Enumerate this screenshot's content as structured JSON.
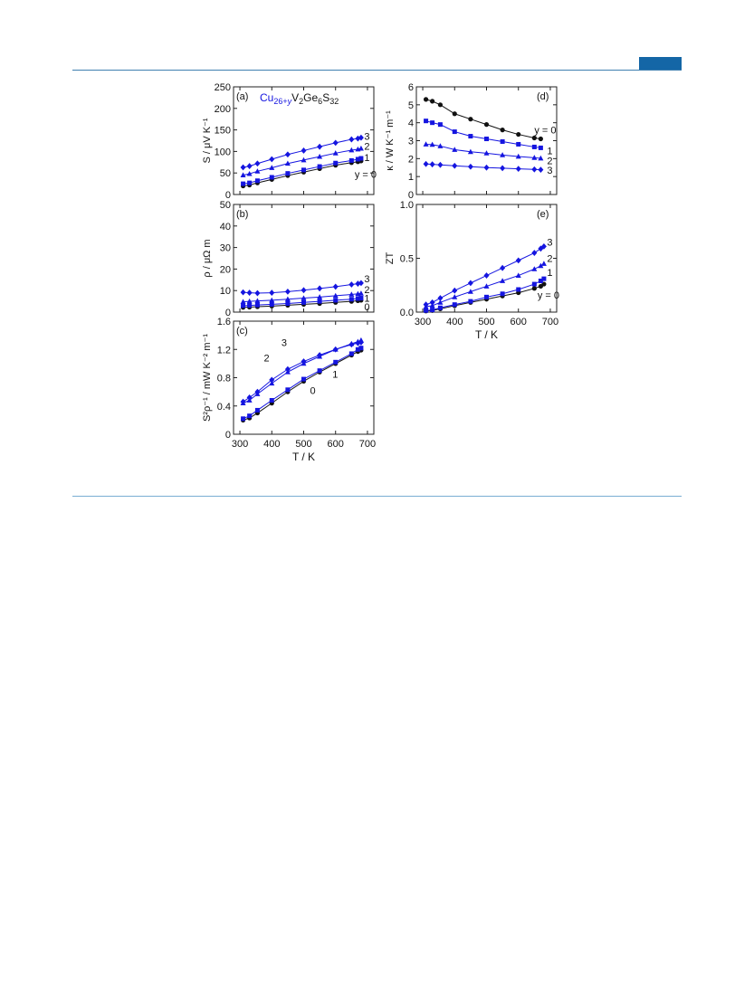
{
  "page": {
    "accent_color": "#1466a6",
    "rule_color": "#3f7fb0"
  },
  "figure": {
    "formula": {
      "cu": "Cu",
      "sub1": "26+",
      "y": "y",
      "v": "V",
      "sub2": "2",
      "ge": "Ge",
      "sub3": "6",
      "s": "S",
      "sub4": "32"
    },
    "colors": {
      "y0": "#111111",
      "doped": "#1515e0"
    }
  },
  "chart_data": [
    {
      "id": "a",
      "panel_label": "(a)",
      "type": "line",
      "ylabel": "S / μV K⁻¹",
      "xlim": [
        280,
        720
      ],
      "ylim": [
        0,
        250
      ],
      "yticks": [
        0,
        50,
        100,
        150,
        200,
        250
      ],
      "xticks": [
        300,
        400,
        500,
        600,
        700
      ],
      "show_xtick_labels": false,
      "series": [
        {
          "name": "y = 0",
          "color": "#111111",
          "marker": "circle",
          "x": [
            310,
            330,
            355,
            400,
            450,
            500,
            550,
            600,
            650,
            670,
            680
          ],
          "y": [
            20,
            22,
            27,
            35,
            44,
            52,
            60,
            68,
            74,
            76,
            78
          ]
        },
        {
          "name": "1",
          "color": "#1515e0",
          "marker": "square",
          "x": [
            310,
            330,
            355,
            400,
            450,
            500,
            550,
            600,
            650,
            670,
            680
          ],
          "y": [
            25,
            27,
            32,
            40,
            49,
            57,
            65,
            73,
            79,
            82,
            84
          ]
        },
        {
          "name": "2",
          "color": "#1515e0",
          "marker": "triangle",
          "x": [
            310,
            330,
            355,
            400,
            450,
            500,
            550,
            600,
            650,
            670,
            680
          ],
          "y": [
            45,
            48,
            54,
            62,
            72,
            80,
            88,
            96,
            103,
            105,
            107
          ]
        },
        {
          "name": "3",
          "color": "#1515e0",
          "marker": "diamond",
          "x": [
            310,
            330,
            355,
            400,
            450,
            500,
            550,
            600,
            650,
            670,
            680
          ],
          "y": [
            63,
            66,
            72,
            82,
            93,
            102,
            111,
            120,
            128,
            130,
            132
          ]
        }
      ],
      "series_labels": [
        {
          "text": "3",
          "x": 690,
          "y": 136
        },
        {
          "text": "2",
          "x": 690,
          "y": 112
        },
        {
          "text": "1",
          "x": 690,
          "y": 86
        },
        {
          "text": "y = 0",
          "x": 660,
          "y": 47
        }
      ]
    },
    {
      "id": "b",
      "panel_label": "(b)",
      "type": "line",
      "ylabel": "ρ / μΩ m",
      "xlim": [
        280,
        720
      ],
      "ylim": [
        0,
        50
      ],
      "yticks": [
        0,
        10,
        20,
        30,
        40,
        50
      ],
      "xticks": [
        300,
        400,
        500,
        600,
        700
      ],
      "show_xtick_labels": false,
      "series": [
        {
          "name": "0",
          "color": "#111111",
          "marker": "circle",
          "x": [
            310,
            330,
            355,
            400,
            450,
            500,
            550,
            600,
            650,
            670,
            680
          ],
          "y": [
            2.2,
            2.3,
            2.5,
            2.8,
            3.2,
            3.6,
            4.0,
            4.5,
            5.0,
            5.3,
            5.5
          ]
        },
        {
          "name": "1",
          "color": "#1515e0",
          "marker": "square",
          "x": [
            310,
            330,
            355,
            400,
            450,
            500,
            550,
            600,
            650,
            670,
            680
          ],
          "y": [
            3.0,
            3.1,
            3.3,
            3.6,
            4.0,
            4.5,
            5.0,
            5.5,
            6.0,
            6.3,
            6.5
          ]
        },
        {
          "name": "2",
          "color": "#1515e0",
          "marker": "triangle",
          "x": [
            310,
            330,
            355,
            400,
            450,
            500,
            550,
            600,
            650,
            670,
            680
          ],
          "y": [
            4.8,
            5.0,
            5.2,
            5.5,
            6.0,
            6.5,
            7.0,
            7.6,
            8.2,
            8.5,
            8.7
          ]
        },
        {
          "name": "3",
          "color": "#1515e0",
          "marker": "diamond",
          "x": [
            310,
            330,
            355,
            400,
            450,
            500,
            550,
            600,
            650,
            670,
            680
          ],
          "y": [
            9.2,
            9.0,
            8.8,
            9.0,
            9.5,
            10.2,
            11.0,
            11.8,
            12.8,
            13.2,
            13.5
          ]
        }
      ],
      "series_labels": [
        {
          "text": "3",
          "x": 690,
          "y": 15.5
        },
        {
          "text": "2",
          "x": 690,
          "y": 10.5
        },
        {
          "text": "1",
          "x": 690,
          "y": 6.5
        },
        {
          "text": "0",
          "x": 690,
          "y": 2.5
        }
      ]
    },
    {
      "id": "c",
      "panel_label": "(c)",
      "type": "line",
      "ylabel": "S²ρ⁻¹ / mW K⁻² m⁻¹",
      "xlabel": "T / K",
      "xlim": [
        280,
        720
      ],
      "ylim": [
        0,
        1.6
      ],
      "yticks": [
        0,
        0.4,
        0.8,
        1.2,
        1.6
      ],
      "ytick_labels": [
        "0",
        "0.4",
        "0.8",
        "1.2",
        "1.6"
      ],
      "xticks": [
        300,
        400,
        500,
        600,
        700
      ],
      "show_xtick_labels": true,
      "series": [
        {
          "name": "0",
          "color": "#111111",
          "marker": "circle",
          "x": [
            310,
            330,
            355,
            400,
            450,
            500,
            550,
            600,
            650,
            670,
            680
          ],
          "y": [
            0.2,
            0.23,
            0.3,
            0.44,
            0.6,
            0.75,
            0.88,
            1.0,
            1.12,
            1.17,
            1.19
          ]
        },
        {
          "name": "1",
          "color": "#1515e0",
          "marker": "square",
          "x": [
            310,
            330,
            355,
            400,
            450,
            500,
            550,
            600,
            650,
            670,
            680
          ],
          "y": [
            0.22,
            0.26,
            0.34,
            0.48,
            0.63,
            0.78,
            0.9,
            1.02,
            1.14,
            1.2,
            1.22
          ]
        },
        {
          "name": "2",
          "color": "#1515e0",
          "marker": "triangle",
          "x": [
            310,
            330,
            355,
            400,
            450,
            500,
            550,
            600,
            650,
            670,
            680
          ],
          "y": [
            0.44,
            0.48,
            0.57,
            0.72,
            0.88,
            1.0,
            1.1,
            1.2,
            1.28,
            1.31,
            1.33
          ]
        },
        {
          "name": "3",
          "color": "#1515e0",
          "marker": "diamond",
          "x": [
            310,
            330,
            355,
            400,
            450,
            500,
            550,
            600,
            650,
            670,
            680
          ],
          "y": [
            0.46,
            0.52,
            0.6,
            0.77,
            0.92,
            1.03,
            1.12,
            1.2,
            1.27,
            1.29,
            1.3
          ]
        }
      ],
      "series_labels": [
        {
          "text": "3",
          "x": 430,
          "y": 1.3
        },
        {
          "text": "2",
          "x": 375,
          "y": 1.08
        },
        {
          "text": "1",
          "x": 590,
          "y": 0.85
        },
        {
          "text": "0",
          "x": 520,
          "y": 0.62
        }
      ]
    },
    {
      "id": "d",
      "panel_label": "(d)",
      "type": "line",
      "ylabel": "κ / W K⁻¹ m⁻¹",
      "xlim": [
        280,
        720
      ],
      "ylim": [
        0,
        6
      ],
      "yticks": [
        0,
        1,
        2,
        3,
        4,
        5,
        6
      ],
      "xticks": [
        300,
        400,
        500,
        600,
        700
      ],
      "show_xtick_labels": false,
      "series": [
        {
          "name": "y = 0",
          "color": "#111111",
          "marker": "circle",
          "x": [
            310,
            330,
            355,
            400,
            450,
            500,
            550,
            600,
            650,
            670
          ],
          "y": [
            5.3,
            5.2,
            5.0,
            4.5,
            4.2,
            3.9,
            3.6,
            3.35,
            3.15,
            3.1
          ]
        },
        {
          "name": "1",
          "color": "#1515e0",
          "marker": "square",
          "x": [
            310,
            330,
            355,
            400,
            450,
            500,
            550,
            600,
            650,
            670
          ],
          "y": [
            4.1,
            4.0,
            3.9,
            3.5,
            3.25,
            3.1,
            2.95,
            2.8,
            2.65,
            2.6
          ]
        },
        {
          "name": "2",
          "color": "#1515e0",
          "marker": "triangle",
          "x": [
            310,
            330,
            355,
            400,
            450,
            500,
            550,
            600,
            650,
            670
          ],
          "y": [
            2.8,
            2.78,
            2.7,
            2.5,
            2.38,
            2.3,
            2.2,
            2.12,
            2.05,
            2.02
          ]
        },
        {
          "name": "3",
          "color": "#1515e0",
          "marker": "diamond",
          "x": [
            310,
            330,
            355,
            400,
            450,
            500,
            550,
            600,
            650,
            670
          ],
          "y": [
            1.7,
            1.68,
            1.65,
            1.6,
            1.55,
            1.5,
            1.47,
            1.43,
            1.4,
            1.38
          ]
        }
      ],
      "series_labels": [
        {
          "text": "y = 0",
          "x": 650,
          "y": 3.6
        },
        {
          "text": "1",
          "x": 690,
          "y": 2.45
        },
        {
          "text": "2",
          "x": 690,
          "y": 1.9
        },
        {
          "text": "3",
          "x": 690,
          "y": 1.35
        }
      ]
    },
    {
      "id": "e",
      "panel_label": "(e)",
      "type": "line",
      "ylabel": "ZT",
      "xlabel": "T / K",
      "xlim": [
        280,
        720
      ],
      "ylim": [
        0,
        1.0
      ],
      "yticks": [
        0,
        0.5,
        1.0
      ],
      "ytick_labels": [
        "0.0",
        "0.5",
        "1.0"
      ],
      "xticks": [
        300,
        400,
        500,
        600,
        700
      ],
      "show_xtick_labels": true,
      "series": [
        {
          "name": "y = 0",
          "color": "#111111",
          "marker": "circle",
          "x": [
            310,
            330,
            355,
            400,
            450,
            500,
            550,
            600,
            650,
            670,
            680
          ],
          "y": [
            0.01,
            0.015,
            0.03,
            0.06,
            0.09,
            0.12,
            0.15,
            0.18,
            0.22,
            0.24,
            0.26
          ]
        },
        {
          "name": "1",
          "color": "#1515e0",
          "marker": "square",
          "x": [
            310,
            330,
            355,
            400,
            450,
            500,
            550,
            600,
            650,
            670,
            680
          ],
          "y": [
            0.015,
            0.02,
            0.04,
            0.07,
            0.1,
            0.14,
            0.17,
            0.21,
            0.26,
            0.29,
            0.31
          ]
        },
        {
          "name": "2",
          "color": "#1515e0",
          "marker": "triangle",
          "x": [
            310,
            330,
            355,
            400,
            450,
            500,
            550,
            600,
            650,
            670,
            680
          ],
          "y": [
            0.05,
            0.06,
            0.09,
            0.14,
            0.19,
            0.24,
            0.29,
            0.34,
            0.4,
            0.43,
            0.45
          ]
        },
        {
          "name": "3",
          "color": "#1515e0",
          "marker": "diamond",
          "x": [
            310,
            330,
            355,
            400,
            450,
            500,
            550,
            600,
            650,
            670,
            680
          ],
          "y": [
            0.07,
            0.09,
            0.13,
            0.2,
            0.27,
            0.34,
            0.41,
            0.48,
            0.55,
            0.59,
            0.61
          ]
        }
      ],
      "series_labels": [
        {
          "text": "3",
          "x": 690,
          "y": 0.65
        },
        {
          "text": "2",
          "x": 690,
          "y": 0.5
        },
        {
          "text": "1",
          "x": 690,
          "y": 0.37
        },
        {
          "text": "y = 0",
          "x": 660,
          "y": 0.16
        }
      ]
    }
  ]
}
